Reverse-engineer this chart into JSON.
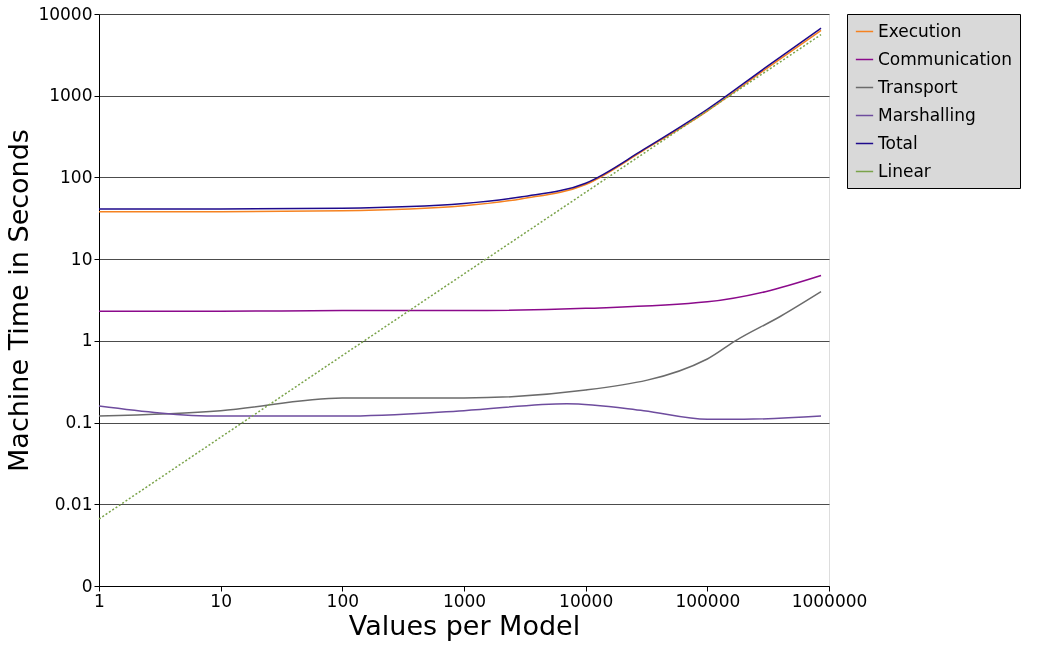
{
  "chart_data": {
    "type": "line",
    "xlabel": "Values per Model",
    "ylabel": "Machine Time in Seconds",
    "log": "xy",
    "grid": "y",
    "legend": "right",
    "marker": "none",
    "xlim": [
      1,
      1000000
    ],
    "xticks": [
      1,
      10,
      100,
      1000,
      10000,
      100000,
      1000000
    ],
    "ylim": [
      0.001,
      10000
    ],
    "yticks": [
      {
        "value": 0.001,
        "label": "0"
      },
      0.01,
      0.1,
      1,
      10,
      100,
      1000,
      10000
    ],
    "series": [
      {
        "name": "Execution",
        "color": "#f58220",
        "x": [
          1,
          10,
          100,
          1000,
          3000,
          10000,
          30000,
          100000,
          300000,
          860000
        ],
        "values": [
          38,
          38,
          39,
          45,
          55,
          82,
          215,
          650,
          2100,
          6300
        ]
      },
      {
        "name": "Communication",
        "color": "#8b0a8b",
        "x": [
          1,
          10,
          100,
          1000,
          10000,
          100000,
          300000,
          860000
        ],
        "values": [
          2.3,
          2.3,
          2.35,
          2.35,
          2.5,
          3,
          4,
          6.3
        ]
      },
      {
        "name": "Transport",
        "color": "#6b6b6b",
        "x": [
          1,
          10,
          100,
          1000,
          10000,
          100000,
          170000,
          400000,
          860000
        ],
        "values": [
          0.12,
          0.14,
          0.2,
          0.2,
          0.25,
          0.6,
          1,
          2,
          4
        ]
      },
      {
        "name": "Marshalling",
        "color": "#6e4c9e",
        "x": [
          1,
          10,
          100,
          1000,
          7000,
          30000,
          100000,
          200000,
          860000
        ],
        "values": [
          0.16,
          0.12,
          0.12,
          0.14,
          0.17,
          0.14,
          0.11,
          0.11,
          0.12
        ]
      },
      {
        "name": "Total",
        "color": "#1e0a8c",
        "x": [
          1,
          10,
          100,
          1000,
          3000,
          10000,
          30000,
          100000,
          300000,
          860000
        ],
        "values": [
          41,
          41,
          42,
          48,
          58,
          85,
          220,
          680,
          2200,
          6700
        ]
      },
      {
        "name": "Linear",
        "color": "#7aa34a",
        "line_style": "dotted",
        "x": [
          1,
          1000,
          860000
        ],
        "values": [
          0.0066,
          6.6,
          5600
        ]
      }
    ]
  }
}
